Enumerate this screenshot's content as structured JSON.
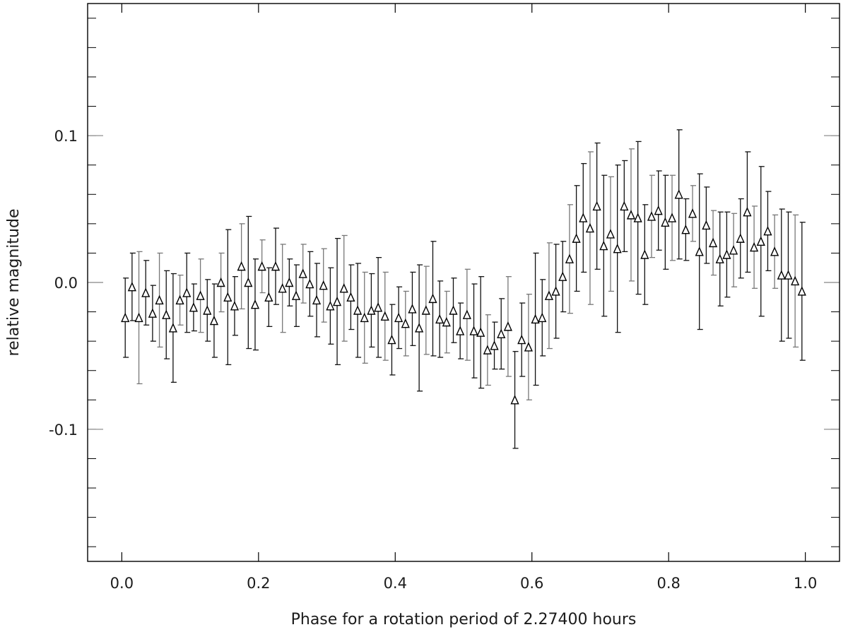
{
  "chart_data": {
    "type": "scatter",
    "title": "",
    "xlabel": "Phase for a rotation period of 2.27400 hours",
    "ylabel": "relative magnitude",
    "xlim": [
      -0.05,
      1.05
    ],
    "ylim": [
      0.19,
      -0.19
    ],
    "x_ticks": [
      0.0,
      0.2,
      0.4,
      0.6,
      0.8,
      1.0
    ],
    "x_tick_labels": [
      "0.0",
      "0.2",
      "0.4",
      "0.6",
      "0.8",
      "1.0"
    ],
    "y_ticks": [
      0.1,
      0.0,
      -0.1
    ],
    "y_tick_labels": [
      "0.1",
      "0.0",
      "-0.1"
    ],
    "minor_y_step": 0.02,
    "marker": "open-triangle",
    "grid": false,
    "series": [
      {
        "x": [
          0.005,
          0.015,
          0.025,
          0.035,
          0.045,
          0.055,
          0.065,
          0.075,
          0.085,
          0.095,
          0.105,
          0.115,
          0.125,
          0.135,
          0.145,
          0.155,
          0.165,
          0.175,
          0.185,
          0.195,
          0.205,
          0.215,
          0.225,
          0.235,
          0.245,
          0.255,
          0.265,
          0.275,
          0.285,
          0.295,
          0.305,
          0.315,
          0.325,
          0.335,
          0.345,
          0.355,
          0.365,
          0.375,
          0.385,
          0.395,
          0.405,
          0.415,
          0.425,
          0.435,
          0.445,
          0.455,
          0.465,
          0.475,
          0.485,
          0.495,
          0.505,
          0.515,
          0.525,
          0.535,
          0.545,
          0.555,
          0.565,
          0.575,
          0.585,
          0.595,
          0.605,
          0.615,
          0.625,
          0.635,
          0.645,
          0.655,
          0.665,
          0.675,
          0.685,
          0.695,
          0.705,
          0.715,
          0.725,
          0.735,
          0.745,
          0.755,
          0.765,
          0.775,
          0.785,
          0.795,
          0.805,
          0.815,
          0.825,
          0.835,
          0.845,
          0.855,
          0.865,
          0.875,
          0.885,
          0.895,
          0.905,
          0.915,
          0.925,
          0.935,
          0.945,
          0.955,
          0.965,
          0.975,
          0.985,
          0.995
        ],
        "y": [
          -0.024,
          -0.003,
          -0.024,
          -0.007,
          -0.021,
          -0.012,
          -0.022,
          -0.031,
          -0.012,
          -0.007,
          -0.017,
          -0.009,
          -0.019,
          -0.026,
          0.0,
          -0.01,
          -0.016,
          0.011,
          0.0,
          -0.015,
          0.011,
          -0.01,
          0.011,
          -0.004,
          0.0,
          -0.009,
          0.006,
          -0.001,
          -0.012,
          -0.002,
          -0.016,
          -0.013,
          -0.004,
          -0.01,
          -0.019,
          -0.024,
          -0.019,
          -0.017,
          -0.023,
          -0.039,
          -0.024,
          -0.028,
          -0.018,
          -0.031,
          -0.019,
          -0.011,
          -0.025,
          -0.027,
          -0.019,
          -0.033,
          -0.022,
          -0.033,
          -0.034,
          -0.046,
          -0.043,
          -0.035,
          -0.03,
          -0.08,
          -0.039,
          -0.044,
          -0.025,
          -0.024,
          -0.009,
          -0.006,
          0.004,
          0.016,
          0.03,
          0.044,
          0.037,
          0.052,
          0.025,
          0.033,
          0.023,
          0.052,
          0.046,
          0.044,
          0.019,
          0.045,
          0.049,
          0.041,
          0.044,
          0.06,
          0.036,
          0.047,
          0.021,
          0.039,
          0.027,
          0.016,
          0.019,
          0.022,
          0.03,
          0.048,
          0.024,
          0.028,
          0.035,
          0.021,
          0.005,
          0.005,
          0.001,
          -0.006
        ],
        "error": [
          0.027,
          0.023,
          0.045,
          0.022,
          0.019,
          0.032,
          0.03,
          0.037,
          0.017,
          0.027,
          0.016,
          0.025,
          0.021,
          0.025,
          0.02,
          0.046,
          0.02,
          0.029,
          0.045,
          0.031,
          0.018,
          0.02,
          0.026,
          0.03,
          0.016,
          0.021,
          0.02,
          0.022,
          0.025,
          0.025,
          0.026,
          0.043,
          0.036,
          0.022,
          0.032,
          0.031,
          0.025,
          0.034,
          0.03,
          0.024,
          0.021,
          0.022,
          0.025,
          0.043,
          0.03,
          0.039,
          0.026,
          0.021,
          0.022,
          0.019,
          0.031,
          0.032,
          0.038,
          0.024,
          0.016,
          0.024,
          0.034,
          0.033,
          0.025,
          0.036,
          0.045,
          0.026,
          0.036,
          0.032,
          0.024,
          0.037,
          0.036,
          0.037,
          0.052,
          0.043,
          0.048,
          0.039,
          0.057,
          0.031,
          0.045,
          0.052,
          0.034,
          0.028,
          0.027,
          0.032,
          0.029,
          0.044,
          0.021,
          0.019,
          0.053,
          0.026,
          0.022,
          0.032,
          0.029,
          0.025,
          0.027,
          0.041,
          0.028,
          0.051,
          0.027,
          0.025,
          0.045,
          0.043,
          0.045,
          0.047
        ]
      }
    ]
  }
}
